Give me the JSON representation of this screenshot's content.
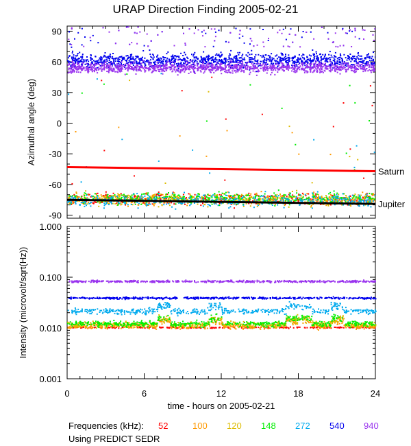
{
  "title": "URAP Direction Finding  2005-02-21",
  "footer": {
    "legend_label": "Frequencies (kHz):",
    "note": "Using PREDICT SEDR"
  },
  "chart_data": [
    {
      "type": "scatter",
      "panel": "top",
      "ylabel": "Azimuthal angle (deg)",
      "xlabel": "time - hours on 2005-02-21",
      "xlim": [
        0,
        24
      ],
      "ylim": [
        -93,
        95
      ],
      "x_ticks": [
        "0",
        "6",
        "12",
        "18",
        "24"
      ],
      "y_ticks": [
        "90",
        "60",
        "30",
        "0",
        "-30",
        "-60",
        "-90"
      ],
      "reference_lines": [
        {
          "name": "Saturn",
          "color": "#ff0000",
          "x": [
            0,
            24
          ],
          "y": [
            -43,
            -47
          ]
        },
        {
          "name": "Jupiter",
          "color": "#000000",
          "x": [
            0,
            24
          ],
          "y": [
            -75,
            -79
          ]
        }
      ],
      "series": [
        {
          "name": "52",
          "color": "#ff0000",
          "band_center": -74,
          "band_spread": 8
        },
        {
          "name": "100",
          "color": "#ff9900",
          "band_center": -74,
          "band_spread": 8
        },
        {
          "name": "120",
          "color": "#ddbb00",
          "band_center": -74,
          "band_spread": 8
        },
        {
          "name": "148",
          "color": "#00ee00",
          "band_center": -73,
          "band_spread": 8
        },
        {
          "name": "272",
          "color": "#00aaee",
          "band_center": -75,
          "band_spread": 9
        },
        {
          "name": "540",
          "color": "#0000ee",
          "band_center": 62,
          "band_spread": 10
        },
        {
          "name": "940",
          "color": "#9933ee",
          "band_center": 55,
          "band_spread": 7
        }
      ]
    },
    {
      "type": "scatter",
      "panel": "bottom",
      "ylabel": "Intensity (microvolt/sqrt(Hz))",
      "xlabel": "time - hours on 2005-02-21",
      "xlim": [
        0,
        24
      ],
      "ylim": [
        0.001,
        1.0
      ],
      "yscale": "log",
      "x_ticks": [
        "0",
        "6",
        "12",
        "18",
        "24"
      ],
      "y_ticks": [
        "1.000",
        "0.100",
        "0.010",
        "0.001"
      ],
      "series": [
        {
          "name": "52",
          "color": "#ff0000",
          "level": 0.0105
        },
        {
          "name": "100",
          "color": "#ff9900",
          "level": 0.0112
        },
        {
          "name": "120",
          "color": "#ddbb00",
          "level": 0.012
        },
        {
          "name": "148",
          "color": "#00ee00",
          "level": 0.0125
        },
        {
          "name": "272",
          "color": "#00aaee",
          "level": 0.022
        },
        {
          "name": "540",
          "color": "#0000ee",
          "level": 0.04
        },
        {
          "name": "940",
          "color": "#9933ee",
          "level": 0.085
        }
      ]
    }
  ]
}
